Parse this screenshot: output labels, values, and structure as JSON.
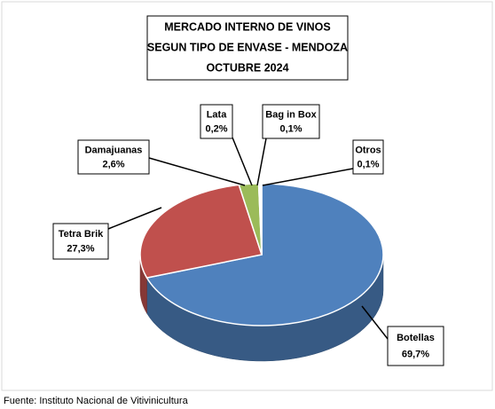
{
  "chart_data": {
    "type": "pie",
    "title": [
      "MERCADO INTERNO DE VINOS",
      "SEGUN TIPO DE ENVASE - MENDOZA",
      "OCTUBRE 2024"
    ],
    "categories": [
      "Botellas",
      "Tetra Brik",
      "Damajuanas",
      "Lata",
      "Bag in Box",
      "Otros"
    ],
    "values": [
      69.7,
      27.3,
      2.6,
      0.2,
      0.1,
      0.1
    ],
    "value_labels": [
      "69,7%",
      "27,3%",
      "2,6%",
      "0,2%",
      "0,1%",
      "0,1%"
    ],
    "colors": [
      "#4f81bd",
      "#c0504d",
      "#9bbb59",
      "#8064a2",
      "#4bacc6",
      "#f79646"
    ],
    "source": "Fuente: Instituto Nacional de Vitivinicultura"
  }
}
